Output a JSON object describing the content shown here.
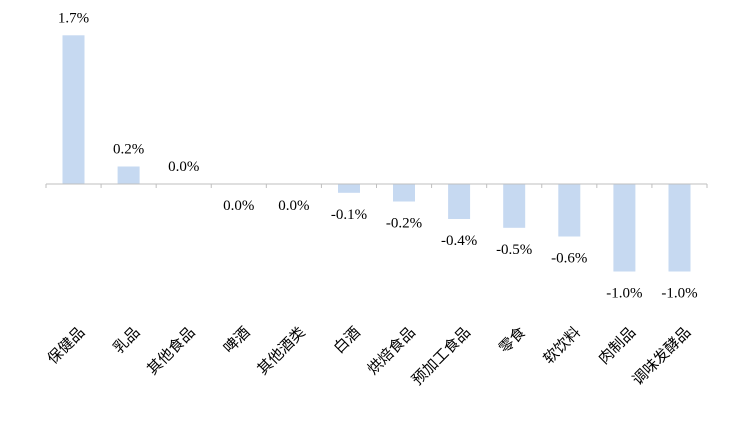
{
  "chart_data": {
    "type": "bar",
    "categories": [
      "保健品",
      "乳品",
      "其他食品",
      "啤酒",
      "其他酒类",
      "白酒",
      "烘焙食品",
      "预加工食品",
      "零食",
      "软饮料",
      "肉制品",
      "调味发酵品"
    ],
    "values": [
      1.7,
      0.2,
      0.0,
      0.0,
      0.0,
      -0.1,
      -0.2,
      -0.4,
      -0.5,
      -0.6,
      -1.0,
      -1.0
    ],
    "data_labels": [
      "1.7%",
      "0.2%",
      "0.0%",
      "0.0%",
      "0.0%",
      "-0.1%",
      "-0.2%",
      "-0.4%",
      "-0.5%",
      "-0.6%",
      "-1.0%",
      "-1.0%"
    ],
    "label_positions": [
      "above",
      "above",
      "above",
      "below",
      "below",
      "below",
      "below",
      "below",
      "below",
      "below",
      "below",
      "below"
    ],
    "value_unit": "%",
    "title": "",
    "xlabel": "",
    "ylabel": "",
    "ylim": [
      -1.1,
      1.7
    ],
    "grid": false,
    "legend": "none",
    "bar_color": "#c6d9f1"
  }
}
